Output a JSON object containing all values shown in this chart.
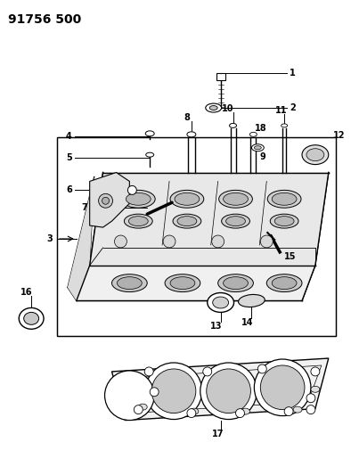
{
  "title": "91756 500",
  "bg": "#ffffff",
  "lc": "#000000",
  "title_fs": 10,
  "label_fs": 7,
  "fig_w": 3.94,
  "fig_h": 5.33,
  "dpi": 100
}
